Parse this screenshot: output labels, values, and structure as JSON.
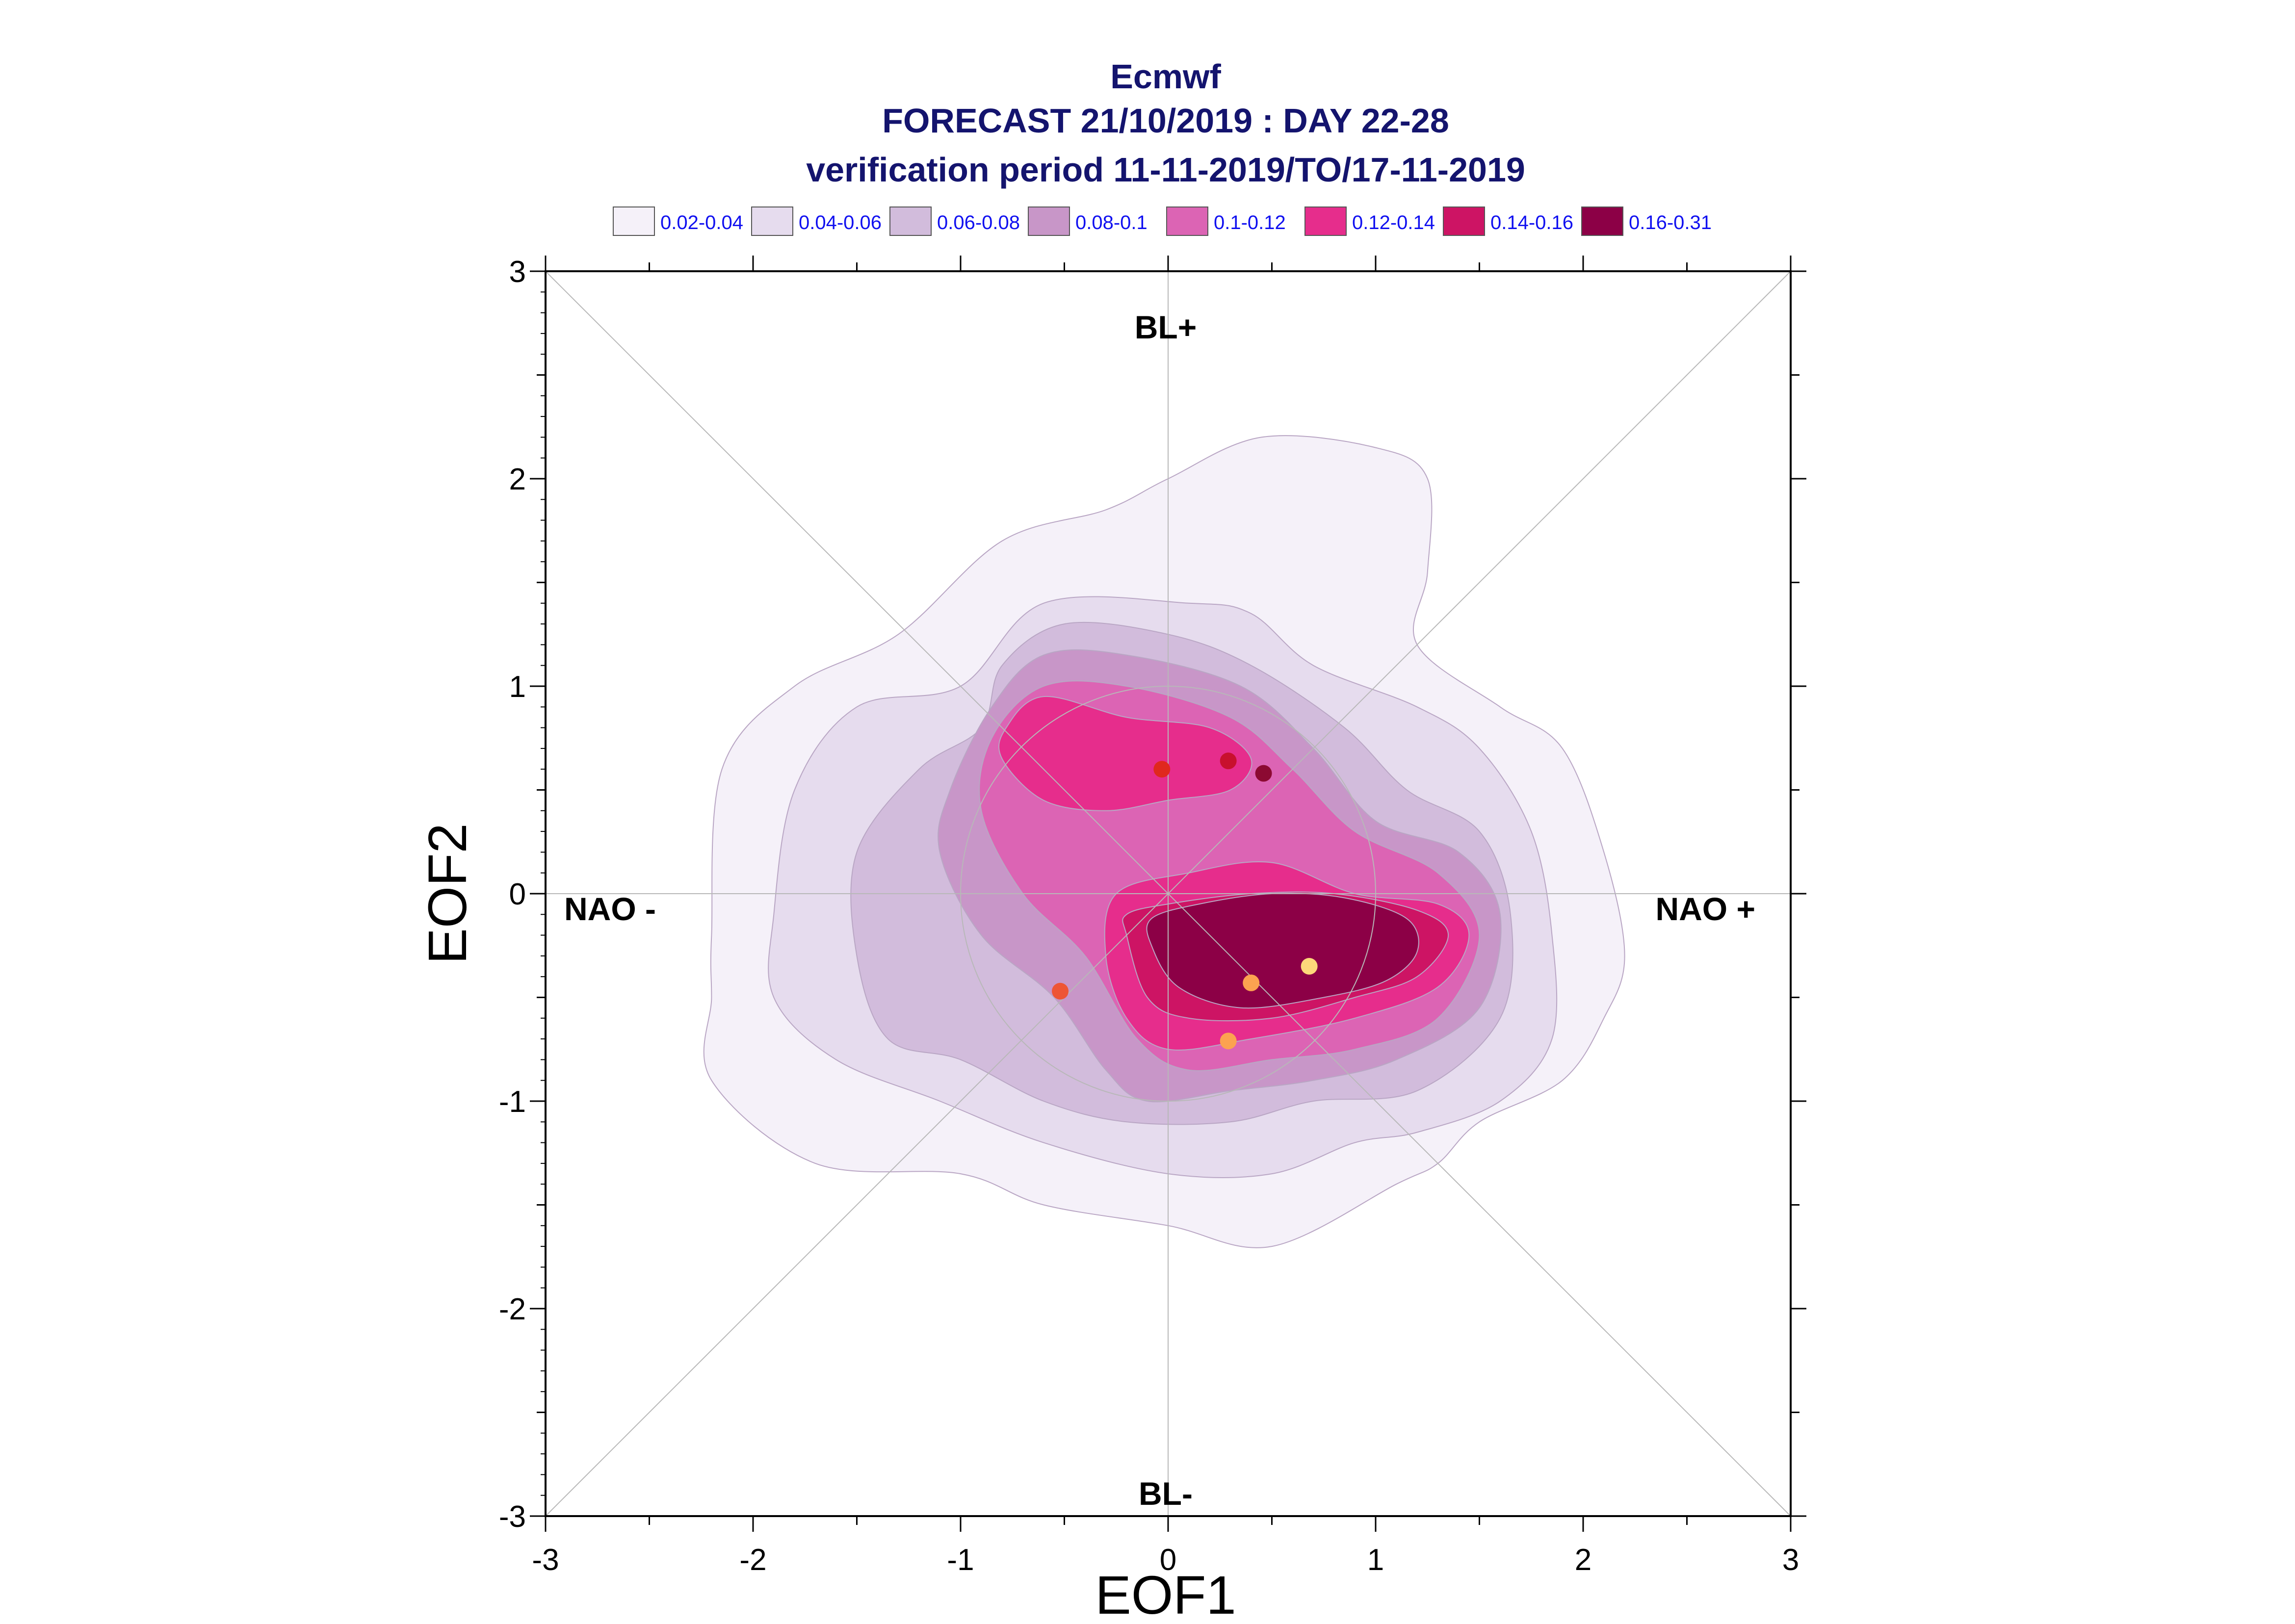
{
  "chart_data": {
    "type": "contour",
    "title": [
      "Ecmwf",
      "FORECAST 21/10/2019 : DAY 22-28",
      "verification period 11-11-2019/TO/17-11-2019"
    ],
    "xlabel": "EOF1",
    "ylabel": "EOF2",
    "xlim": [
      -3,
      3
    ],
    "ylim": [
      -3,
      3
    ],
    "xticks": [
      -3,
      -2,
      -1,
      0,
      1,
      2,
      3
    ],
    "yticks": [
      -3,
      -2,
      -1,
      0,
      1,
      2,
      3
    ],
    "legend": {
      "placement": "top",
      "entries": [
        {
          "label": "0.02-0.04",
          "color": "#f5f1f9"
        },
        {
          "label": "0.04-0.06",
          "color": "#e6dcee"
        },
        {
          "label": "0.06-0.08",
          "color": "#d2bcdc"
        },
        {
          "label": "0.08-0.1",
          "color": "#c896c8"
        },
        {
          "label": "0.1-0.12",
          "color": "#dc64b4"
        },
        {
          "label": "0.12-0.14",
          "color": "#e62d8c"
        },
        {
          "label": "0.14-0.16",
          "color": "#cd1464"
        },
        {
          "label": "0.16-0.31",
          "color": "#8c0046"
        }
      ]
    },
    "regime_labels": {
      "top": "BL+",
      "bottom": "BL-",
      "left": "NAO -",
      "right": "NAO +"
    },
    "reference_circle_radius": 1.0,
    "contours": [
      {
        "level": "0.02-0.04",
        "points": [
          [
            -2.2,
            -0.5
          ],
          [
            -2.2,
            -0.9
          ],
          [
            -1.7,
            -1.3
          ],
          [
            -1.0,
            -1.35
          ],
          [
            -0.6,
            -1.5
          ],
          [
            0.0,
            -1.6
          ],
          [
            0.5,
            -1.7
          ],
          [
            1.1,
            -1.4
          ],
          [
            1.3,
            -1.3
          ],
          [
            1.5,
            -1.1
          ],
          [
            1.9,
            -0.9
          ],
          [
            2.1,
            -0.6
          ],
          [
            2.2,
            -0.3
          ],
          [
            2.1,
            0.2
          ],
          [
            1.9,
            0.7
          ],
          [
            1.6,
            0.9
          ],
          [
            1.2,
            1.2
          ],
          [
            1.25,
            1.55
          ],
          [
            1.25,
            2.0
          ],
          [
            1.0,
            2.15
          ],
          [
            0.45,
            2.2
          ],
          [
            0.0,
            2.0
          ],
          [
            -0.3,
            1.85
          ],
          [
            -0.8,
            1.7
          ],
          [
            -1.3,
            1.25
          ],
          [
            -1.8,
            1.0
          ],
          [
            -2.15,
            0.6
          ],
          [
            -2.2,
            -0.2
          ]
        ]
      },
      {
        "level": "0.04-0.06",
        "points": [
          [
            -1.9,
            -0.5
          ],
          [
            -1.6,
            -0.8
          ],
          [
            -1.1,
            -1.0
          ],
          [
            -0.6,
            -1.2
          ],
          [
            0.0,
            -1.35
          ],
          [
            0.5,
            -1.35
          ],
          [
            0.9,
            -1.2
          ],
          [
            1.2,
            -1.15
          ],
          [
            1.6,
            -1.0
          ],
          [
            1.85,
            -0.7
          ],
          [
            1.85,
            -0.2
          ],
          [
            1.75,
            0.3
          ],
          [
            1.5,
            0.7
          ],
          [
            1.2,
            0.9
          ],
          [
            0.7,
            1.1
          ],
          [
            0.4,
            1.35
          ],
          [
            0.1,
            1.4
          ],
          [
            -0.6,
            1.4
          ],
          [
            -1.0,
            1.0
          ],
          [
            -1.5,
            0.9
          ],
          [
            -1.8,
            0.5
          ],
          [
            -1.9,
            -0.1
          ]
        ]
      },
      {
        "level": "0.06-0.08",
        "points": [
          [
            -1.5,
            -0.3
          ],
          [
            -1.35,
            -0.7
          ],
          [
            -1.0,
            -0.8
          ],
          [
            -0.6,
            -1.0
          ],
          [
            -0.2,
            -1.1
          ],
          [
            0.3,
            -1.1
          ],
          [
            0.7,
            -1.0
          ],
          [
            1.2,
            -0.95
          ],
          [
            1.6,
            -0.6
          ],
          [
            1.65,
            -0.1
          ],
          [
            1.5,
            0.3
          ],
          [
            1.15,
            0.5
          ],
          [
            0.85,
            0.8
          ],
          [
            0.4,
            1.1
          ],
          [
            0.0,
            1.25
          ],
          [
            -0.5,
            1.3
          ],
          [
            -0.8,
            1.1
          ],
          [
            -0.9,
            0.8
          ],
          [
            -1.2,
            0.6
          ],
          [
            -1.5,
            0.2
          ]
        ]
      },
      {
        "level": "0.08-0.1",
        "points": [
          [
            -1.1,
            0.2
          ],
          [
            -0.9,
            -0.2
          ],
          [
            -0.55,
            -0.5
          ],
          [
            -0.3,
            -0.85
          ],
          [
            -0.1,
            -1.0
          ],
          [
            0.3,
            -0.95
          ],
          [
            0.7,
            -0.9
          ],
          [
            1.1,
            -0.8
          ],
          [
            1.5,
            -0.55
          ],
          [
            1.6,
            -0.1
          ],
          [
            1.4,
            0.2
          ],
          [
            1.0,
            0.35
          ],
          [
            0.7,
            0.7
          ],
          [
            0.35,
            1.0
          ],
          [
            -0.2,
            1.15
          ],
          [
            -0.6,
            1.15
          ],
          [
            -0.85,
            0.9
          ],
          [
            -1.05,
            0.5
          ]
        ]
      },
      {
        "level": "0.1-0.12",
        "points": [
          [
            -0.9,
            0.4
          ],
          [
            -0.7,
            0.0
          ],
          [
            -0.4,
            -0.3
          ],
          [
            -0.15,
            -0.7
          ],
          [
            0.1,
            -0.85
          ],
          [
            0.5,
            -0.8
          ],
          [
            0.9,
            -0.75
          ],
          [
            1.3,
            -0.6
          ],
          [
            1.5,
            -0.2
          ],
          [
            1.3,
            0.1
          ],
          [
            0.9,
            0.3
          ],
          [
            0.6,
            0.6
          ],
          [
            0.3,
            0.85
          ],
          [
            -0.2,
            1.0
          ],
          [
            -0.6,
            1.0
          ],
          [
            -0.85,
            0.75
          ]
        ]
      },
      {
        "level": "0.12-0.14",
        "points": [
          [
            -0.8,
            0.65
          ],
          [
            -0.6,
            0.45
          ],
          [
            -0.3,
            0.4
          ],
          [
            0.0,
            0.45
          ],
          [
            0.3,
            0.5
          ],
          [
            0.4,
            0.65
          ],
          [
            0.2,
            0.8
          ],
          [
            -0.2,
            0.85
          ],
          [
            -0.6,
            0.95
          ],
          [
            -0.78,
            0.8
          ]
        ]
      },
      {
        "level": "0.12-0.14",
        "points": [
          [
            -0.3,
            -0.3
          ],
          [
            -0.2,
            -0.6
          ],
          [
            0.0,
            -0.75
          ],
          [
            0.4,
            -0.7
          ],
          [
            0.9,
            -0.6
          ],
          [
            1.3,
            -0.45
          ],
          [
            1.45,
            -0.2
          ],
          [
            1.3,
            -0.05
          ],
          [
            0.9,
            0.0
          ],
          [
            0.5,
            0.15
          ],
          [
            0.1,
            0.1
          ],
          [
            -0.25,
            0.0
          ]
        ]
      },
      {
        "level": "0.14-0.16",
        "points": [
          [
            -0.2,
            -0.2
          ],
          [
            -0.1,
            -0.5
          ],
          [
            0.1,
            -0.6
          ],
          [
            0.5,
            -0.6
          ],
          [
            0.9,
            -0.5
          ],
          [
            1.2,
            -0.4
          ],
          [
            1.35,
            -0.2
          ],
          [
            1.2,
            -0.08
          ],
          [
            0.8,
            0.0
          ],
          [
            0.4,
            0.0
          ],
          [
            0.0,
            -0.05
          ],
          [
            -0.2,
            -0.1
          ]
        ]
      },
      {
        "level": "0.16-0.31",
        "points": [
          [
            -0.08,
            -0.25
          ],
          [
            0.05,
            -0.45
          ],
          [
            0.35,
            -0.55
          ],
          [
            0.75,
            -0.5
          ],
          [
            1.05,
            -0.42
          ],
          [
            1.2,
            -0.28
          ],
          [
            1.15,
            -0.12
          ],
          [
            0.85,
            -0.02
          ],
          [
            0.5,
            0.0
          ],
          [
            0.15,
            -0.05
          ],
          [
            -0.08,
            -0.12
          ]
        ]
      }
    ],
    "points": [
      {
        "x": -0.03,
        "y": 0.6,
        "color": "#e0281e"
      },
      {
        "x": 0.29,
        "y": 0.64,
        "color": "#c8102e"
      },
      {
        "x": 0.46,
        "y": 0.58,
        "color": "#8c0a32"
      },
      {
        "x": -0.52,
        "y": -0.47,
        "color": "#ee5535"
      },
      {
        "x": 0.4,
        "y": -0.43,
        "color": "#fca250"
      },
      {
        "x": 0.68,
        "y": -0.35,
        "color": "#fdd87a"
      },
      {
        "x": 0.29,
        "y": -0.71,
        "color": "#fca250"
      }
    ]
  }
}
